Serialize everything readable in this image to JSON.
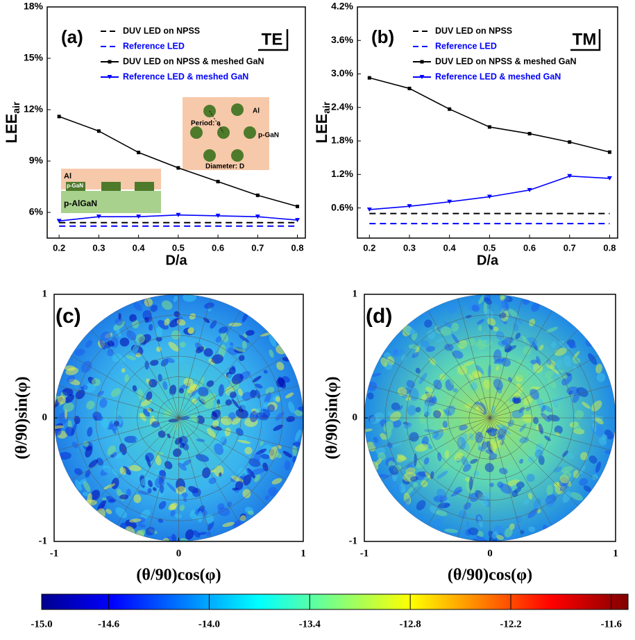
{
  "chart_data": [
    {
      "type": "line",
      "label": "(a)",
      "mode": "TE",
      "x_label": "D/a",
      "y_label": "LEE",
      "y_label_sub": "air",
      "x": [
        0.2,
        0.3,
        0.4,
        0.5,
        0.6,
        0.7,
        0.8
      ],
      "xlim": [
        0.17,
        0.82
      ],
      "xticks": [
        0.2,
        0.3,
        0.4,
        0.5,
        0.6,
        0.7,
        0.8
      ],
      "ylim": [
        4.5,
        18
      ],
      "yticks": [
        {
          "value": 6,
          "label": "6%"
        },
        {
          "value": 9,
          "label": "9%"
        },
        {
          "value": 12,
          "label": "12%"
        },
        {
          "value": 15,
          "label": "15%"
        },
        {
          "value": 18,
          "label": "18%"
        }
      ],
      "series": [
        {
          "name": "DUV LED on NPSS",
          "color": "#000000",
          "dash": true,
          "values": [
            5.4,
            5.4,
            5.4,
            5.4,
            5.4,
            5.4,
            5.4
          ]
        },
        {
          "name": "Reference LED",
          "color": "#0000ff",
          "dash": true,
          "values": [
            5.2,
            5.2,
            5.2,
            5.2,
            5.2,
            5.2,
            5.2
          ]
        },
        {
          "name": "DUV LED on NPSS & meshed GaN",
          "color": "#000000",
          "marker": "square",
          "values": [
            11.6,
            10.75,
            9.5,
            8.6,
            7.8,
            7.0,
            6.35
          ]
        },
        {
          "name": "Reference LED & meshed GaN",
          "color": "#0000ff",
          "marker": "triangle",
          "values": [
            5.5,
            5.75,
            5.75,
            5.85,
            5.8,
            5.75,
            5.55
          ]
        }
      ],
      "inset": {
        "top_labels": [
          "Al",
          "Period: a",
          "p-GaN",
          "Diameter: D"
        ],
        "side_labels": [
          "Al",
          "p-GaN",
          "p-AlGaN"
        ]
      }
    },
    {
      "type": "line",
      "label": "(b)",
      "mode": "TM",
      "x_label": "D/a",
      "y_label": "LEE",
      "y_label_sub": "air",
      "x": [
        0.2,
        0.3,
        0.4,
        0.5,
        0.6,
        0.7,
        0.8
      ],
      "xlim": [
        0.17,
        0.82
      ],
      "xticks": [
        0.2,
        0.3,
        0.4,
        0.5,
        0.6,
        0.7,
        0.8
      ],
      "ylim": [
        0.06,
        4.2
      ],
      "yticks": [
        {
          "value": 0.6,
          "label": "0.6%"
        },
        {
          "value": 1.2,
          "label": "1.2%"
        },
        {
          "value": 1.8,
          "label": "1.8%"
        },
        {
          "value": 2.4,
          "label": "2.4%"
        },
        {
          "value": 3.0,
          "label": "3.0%"
        },
        {
          "value": 3.6,
          "label": "3.6%"
        },
        {
          "value": 4.2,
          "label": "4.2%"
        }
      ],
      "series": [
        {
          "name": "DUV LED on NPSS",
          "color": "#000000",
          "dash": true,
          "values": [
            0.5,
            0.5,
            0.5,
            0.5,
            0.5,
            0.5,
            0.5
          ]
        },
        {
          "name": "Reference LED",
          "color": "#0000ff",
          "dash": true,
          "values": [
            0.32,
            0.32,
            0.32,
            0.32,
            0.32,
            0.32,
            0.32
          ]
        },
        {
          "name": "DUV LED on NPSS & meshed GaN",
          "color": "#000000",
          "marker": "square",
          "values": [
            2.93,
            2.74,
            2.37,
            2.05,
            1.93,
            1.78,
            1.6
          ]
        },
        {
          "name": "Reference LED & meshed GaN",
          "color": "#0000ff",
          "marker": "triangle",
          "values": [
            0.57,
            0.63,
            0.71,
            0.8,
            0.92,
            1.17,
            1.13
          ]
        }
      ]
    },
    {
      "type": "polar-heatmap",
      "label": "(c)",
      "x_label": "(θ/90)cos(φ)",
      "y_label": "(θ/90)sin(φ)",
      "xlim": [
        -1,
        1
      ],
      "xticks": [
        -1,
        0,
        1
      ],
      "ylim": [
        -1,
        1
      ],
      "yticks": [
        -1,
        0,
        1
      ]
    },
    {
      "type": "polar-heatmap",
      "label": "(d)",
      "x_label": "(θ/90)cos(φ)",
      "y_label": "(θ/90)sin(φ)",
      "xlim": [
        -1,
        1
      ],
      "xticks": [
        -1,
        0,
        1
      ],
      "ylim": [
        -1,
        1
      ],
      "yticks": [
        -1,
        0,
        1
      ]
    }
  ],
  "colorbar": {
    "lim": [
      -15,
      -11.5
    ],
    "ticks": [
      {
        "value": -15,
        "label": "-15.0"
      },
      {
        "value": -14.6,
        "label": "-14.6"
      },
      {
        "value": -14,
        "label": "-14.0"
      },
      {
        "value": -13.4,
        "label": "-13.4"
      },
      {
        "value": -12.8,
        "label": "-12.8"
      },
      {
        "value": -12.2,
        "label": "-12.2"
      },
      {
        "value": -11.6,
        "label": "-11.6"
      }
    ]
  }
}
